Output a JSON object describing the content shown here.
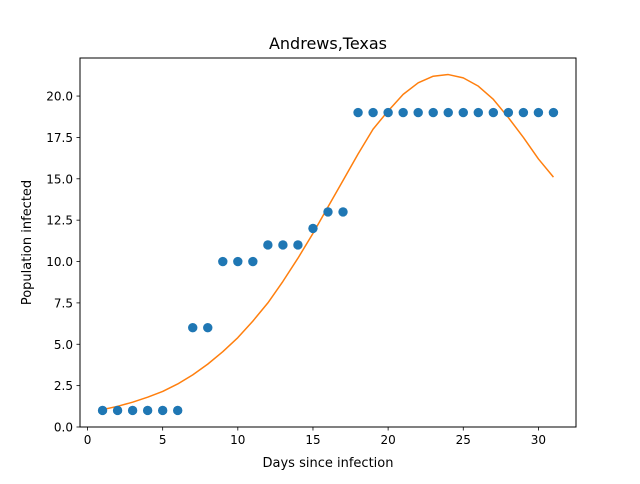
{
  "chart_data": {
    "type": "scatter",
    "title": "Andrews,Texas",
    "xlabel": "Days since infection",
    "ylabel": "Population infected",
    "xlim": [
      -0.5,
      32.5
    ],
    "ylim": [
      0,
      22.3
    ],
    "xticks": [
      0,
      5,
      10,
      15,
      20,
      25,
      30
    ],
    "xtick_labels": [
      "0",
      "5",
      "10",
      "15",
      "20",
      "25",
      "30"
    ],
    "yticks": [
      0,
      2.5,
      5,
      7.5,
      10,
      12.5,
      15,
      17.5,
      20
    ],
    "ytick_labels": [
      "0.0",
      "2.5",
      "5.0",
      "7.5",
      "10.0",
      "12.5",
      "15.0",
      "17.5",
      "20.0"
    ],
    "grid": false,
    "series": [
      {
        "kind": "scatter",
        "color": "#1f77b4",
        "x": [
          1,
          2,
          3,
          4,
          5,
          6,
          7,
          8,
          9,
          10,
          11,
          12,
          13,
          14,
          15,
          16,
          17,
          18,
          19,
          20,
          21,
          22,
          23,
          24,
          25,
          26,
          27,
          28,
          29,
          30,
          31
        ],
        "y": [
          1,
          1,
          1,
          1,
          1,
          1,
          6,
          6,
          10,
          10,
          10,
          11,
          11,
          11,
          12,
          13,
          13,
          19,
          19,
          19,
          19,
          19,
          19,
          19,
          19,
          19,
          19,
          19,
          19,
          19,
          19
        ]
      },
      {
        "kind": "line",
        "color": "#ff7f0e",
        "x": [
          1,
          2,
          3,
          4,
          5,
          6,
          7,
          8,
          9,
          10,
          11,
          12,
          13,
          14,
          15,
          16,
          17,
          18,
          19,
          20,
          21,
          22,
          23,
          24,
          25,
          26,
          27,
          28,
          29,
          30,
          31
        ],
        "y": [
          1.05,
          1.25,
          1.5,
          1.8,
          2.15,
          2.6,
          3.15,
          3.8,
          4.55,
          5.4,
          6.4,
          7.5,
          8.8,
          10.2,
          11.7,
          13.3,
          14.9,
          16.5,
          18.0,
          19.1,
          20.1,
          20.8,
          21.2,
          21.3,
          21.1,
          20.6,
          19.8,
          18.7,
          17.5,
          16.2,
          15.1
        ]
      }
    ]
  }
}
